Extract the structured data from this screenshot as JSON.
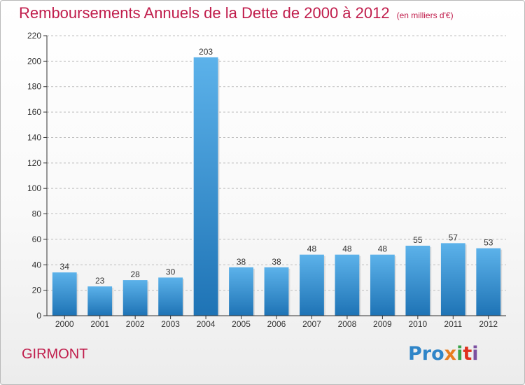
{
  "header": {
    "title": "Remboursements Annuels de la Dette de 2000 à 2012",
    "unit": "(en milliers d'€)"
  },
  "footer": {
    "place": "GIRMONT",
    "logo_text": "Proxiti",
    "logo_parts": [
      "Pro",
      "x",
      "i",
      "t",
      "i"
    ]
  },
  "colors": {
    "title": "#c01c4b",
    "bar_top": "#5cb2ea",
    "bar_bottom": "#1e73b5"
  },
  "chart_data": {
    "type": "bar",
    "title": "Remboursements Annuels de la Dette de 2000 à 2012",
    "xlabel": "",
    "ylabel": "",
    "categories": [
      "2000",
      "2001",
      "2002",
      "2003",
      "2004",
      "2005",
      "2006",
      "2007",
      "2008",
      "2009",
      "2010",
      "2011",
      "2012"
    ],
    "values": [
      34,
      23,
      28,
      30,
      203,
      38,
      38,
      48,
      48,
      48,
      55,
      57,
      53
    ],
    "ylim": [
      0,
      220
    ],
    "yticks": [
      0,
      20,
      40,
      60,
      80,
      100,
      120,
      140,
      160,
      180,
      200,
      220
    ],
    "grid": "y-dashed",
    "legend": "none"
  }
}
